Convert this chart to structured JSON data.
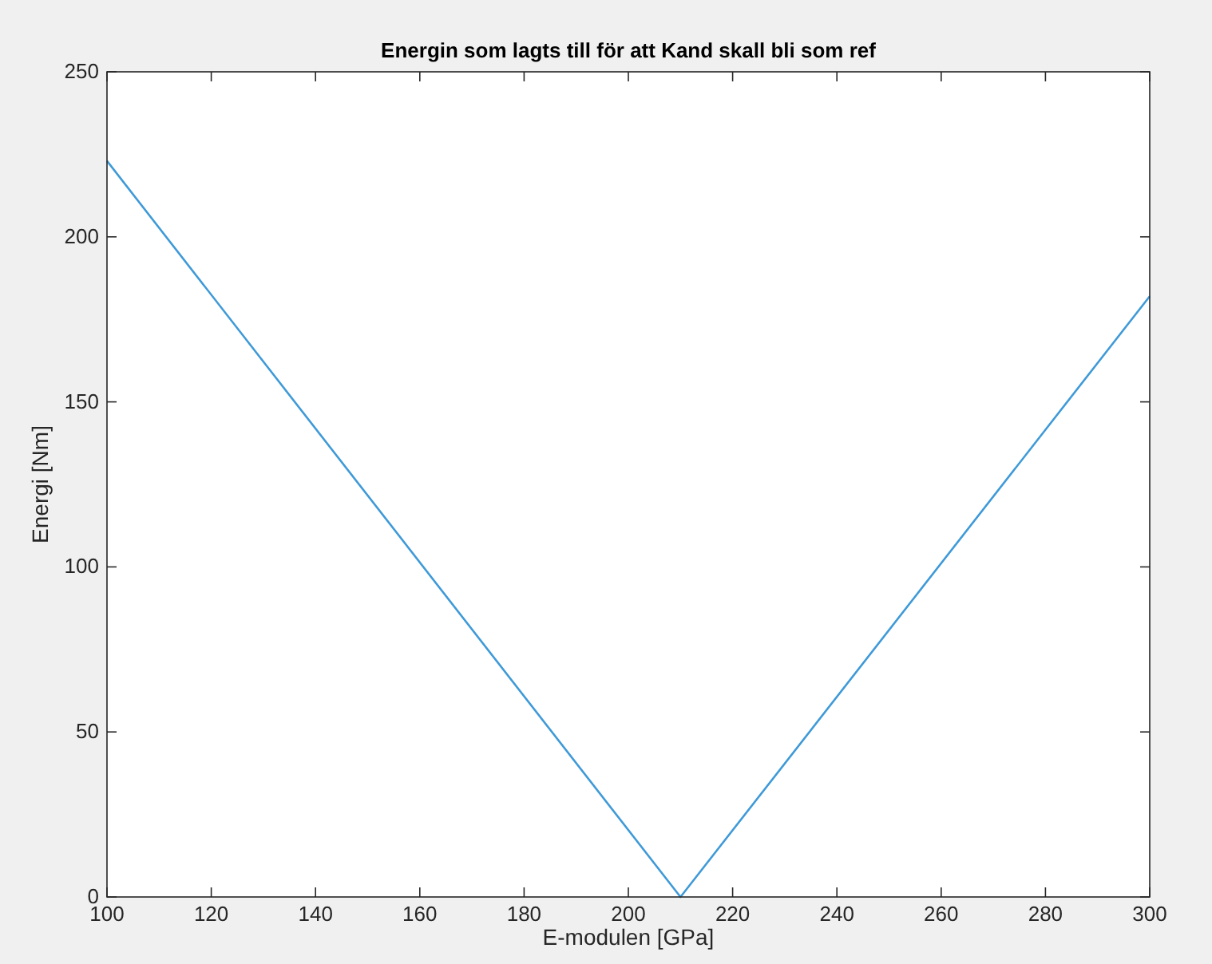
{
  "chart_data": {
    "type": "line",
    "title": "Energin som lagts till för att Kand skall bli som ref",
    "xlabel": "E-modulen [GPa]",
    "ylabel": "Energi [Nm]",
    "x": [
      100,
      210,
      300
    ],
    "series": [
      {
        "color": "#3f9ad8",
        "values": [
          223,
          0,
          182
        ]
      }
    ],
    "xlim": [
      100,
      300
    ],
    "xticks": [
      100,
      120,
      140,
      160,
      180,
      200,
      220,
      240,
      260,
      280,
      300
    ],
    "ylim": [
      0,
      250
    ],
    "yticks": [
      0,
      50,
      100,
      150,
      200,
      250
    ],
    "grid": false
  }
}
